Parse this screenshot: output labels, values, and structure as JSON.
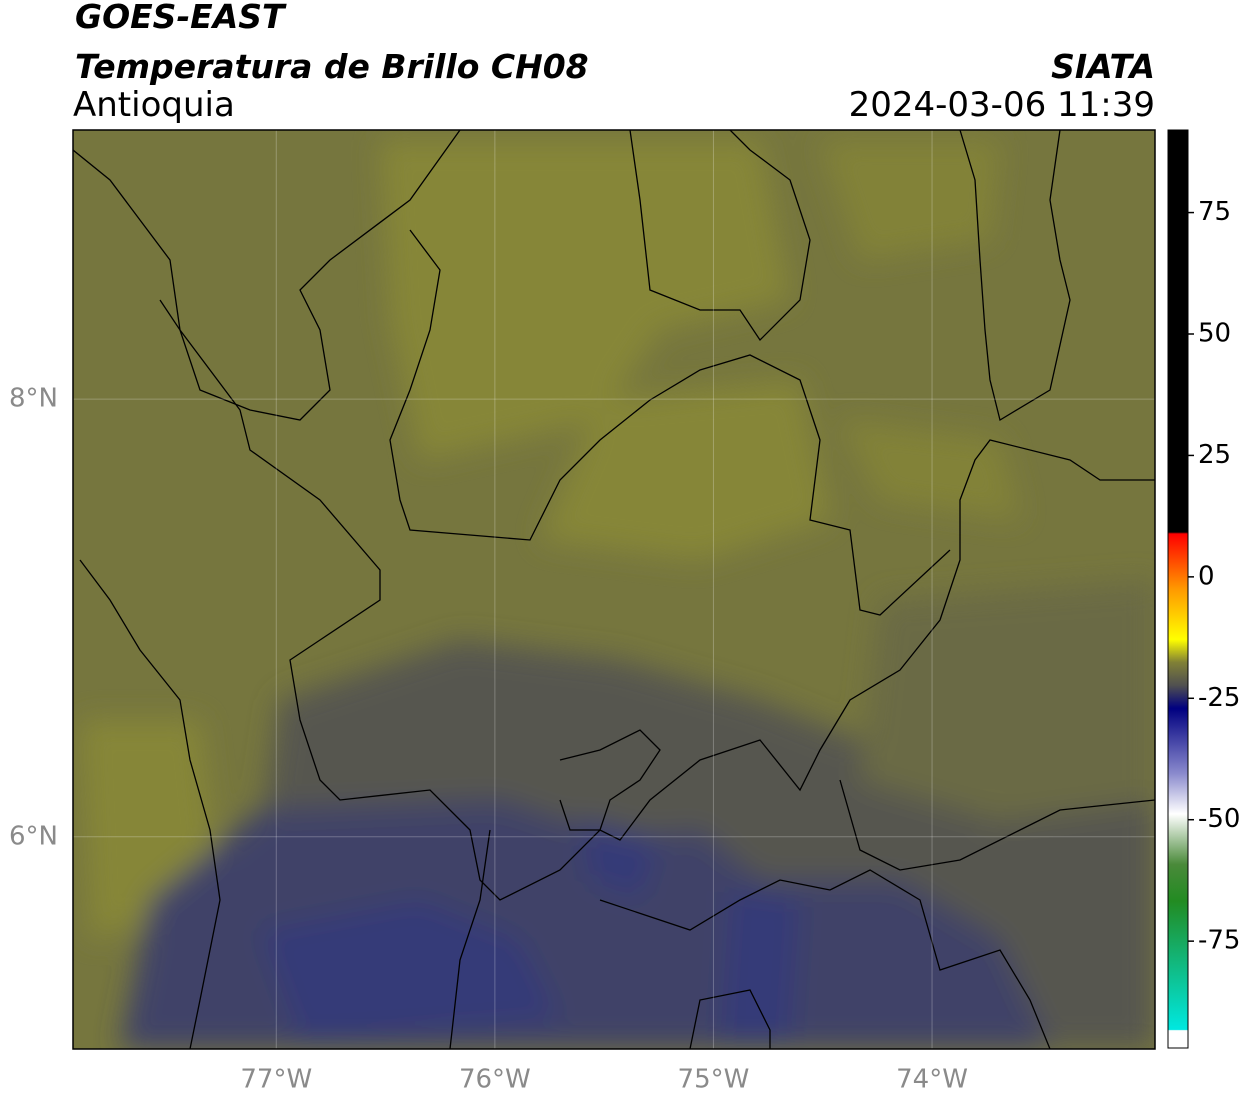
{
  "header": {
    "satellite": "GOES-EAST",
    "product": "Temperatura de Brillo CH08",
    "region": "Antioquia",
    "source": "SIATA",
    "datetime": "2024-03-06 11:39"
  },
  "map": {
    "xlim": [
      -77.93,
      -72.98
    ],
    "ylim": [
      5.03,
      9.23
    ],
    "xticks": [
      {
        "value": -77,
        "label": "77°W"
      },
      {
        "value": -76,
        "label": "76°W"
      },
      {
        "value": -75,
        "label": "75°W"
      },
      {
        "value": -74,
        "label": "74°W"
      }
    ],
    "yticks": [
      {
        "value": 6,
        "label": "6°N"
      },
      {
        "value": 8,
        "label": "8°N"
      }
    ]
  },
  "colorbar": {
    "range": [
      -97,
      92
    ],
    "ticks": [
      75,
      50,
      25,
      0,
      -25,
      -50,
      -75
    ]
  }
}
